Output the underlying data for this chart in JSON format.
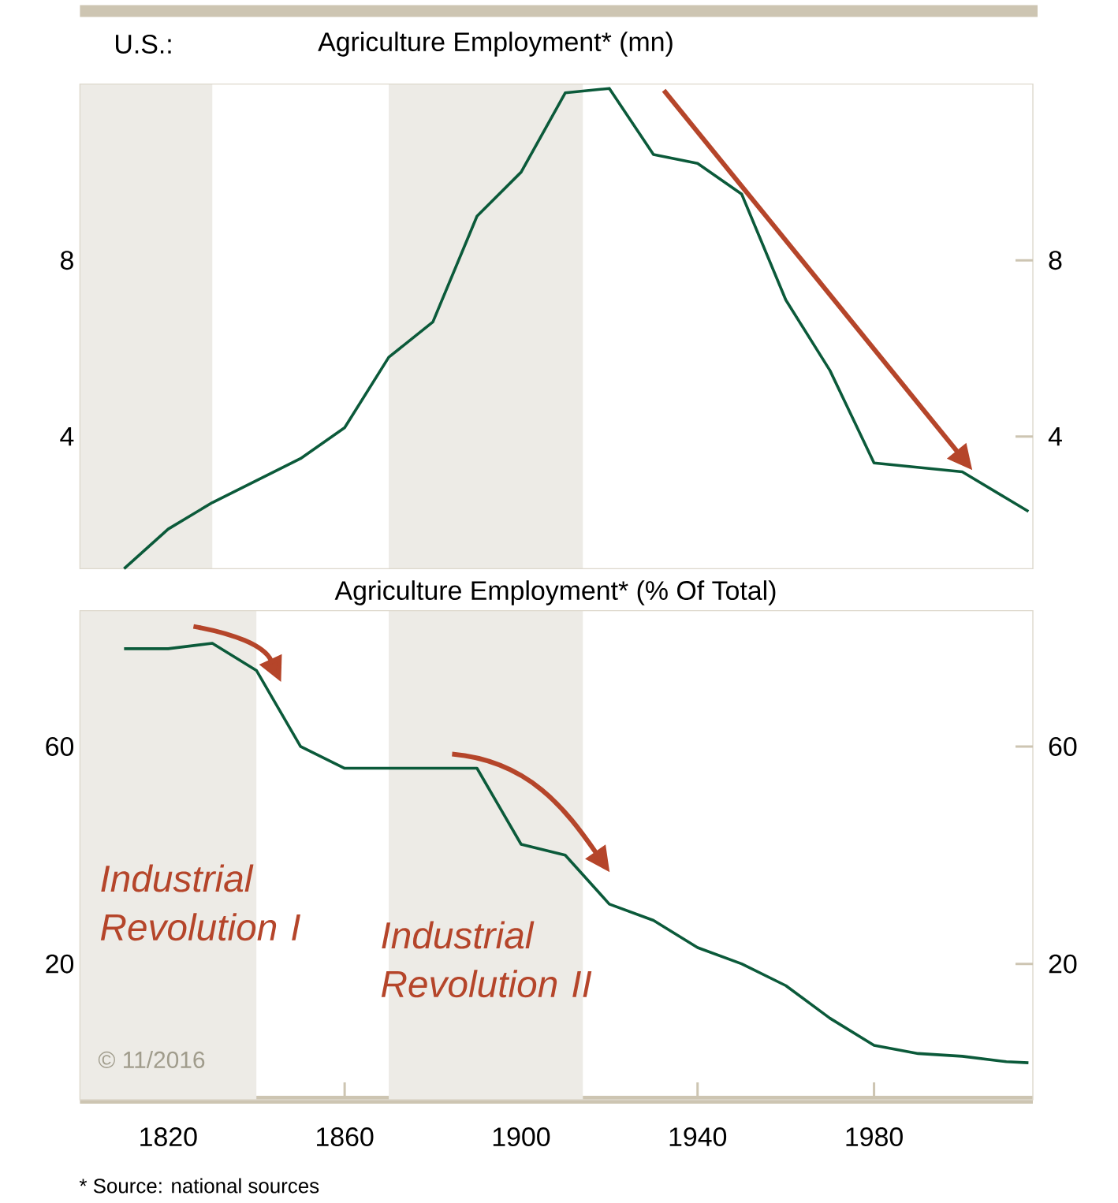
{
  "chart_data": [
    {
      "type": "line",
      "title": "Agriculture Employment* (mn)",
      "annotations": [
        "U.S.:"
      ],
      "x": [
        1810,
        1820,
        1830,
        1850,
        1860,
        1870,
        1880,
        1890,
        1900,
        1910,
        1920,
        1930,
        1940,
        1950,
        1960,
        1970,
        1980,
        2000,
        2010,
        2015
      ],
      "values": [
        1.0,
        1.9,
        2.5,
        3.5,
        4.2,
        5.8,
        6.6,
        9.0,
        10.0,
        11.8,
        11.9,
        10.4,
        10.2,
        9.5,
        7.1,
        5.5,
        3.4,
        3.2,
        2.6,
        2.3
      ],
      "color": "#0b5a3a",
      "xlim": [
        1800,
        2016
      ],
      "ylim": [
        1,
        12
      ],
      "yticks": [
        4,
        8
      ],
      "y2lim": [
        1,
        12
      ],
      "y2ticks": [
        4,
        8
      ],
      "tick_labels": "y",
      "bands": [
        {
          "axis": "x",
          "from": 1800,
          "to": 1830,
          "color": "#edebe6"
        },
        {
          "axis": "x",
          "from": 1870,
          "to": 1914,
          "color": "#edebe6"
        }
      ]
    },
    {
      "type": "line",
      "title": "Agriculture Employment* (% Of Total)",
      "annotations": [
        "Industrial Revolution I",
        "Industrial Revolution II",
        "© 11/2016",
        "* Source: national sources"
      ],
      "x": [
        1810,
        1820,
        1830,
        1840,
        1850,
        1860,
        1890,
        1900,
        1910,
        1920,
        1930,
        1940,
        1950,
        1960,
        1970,
        1980,
        1990,
        2000,
        2010,
        2015
      ],
      "values": [
        78,
        78,
        79,
        74,
        60,
        56,
        56,
        42,
        40,
        31,
        28,
        23,
        20,
        16,
        10,
        5,
        3.5,
        3,
        2,
        1.8
      ],
      "color": "#0b5a3a",
      "xlim": [
        1800,
        2016
      ],
      "xticks": [
        1820,
        1860,
        1900,
        1940,
        1980
      ],
      "ylim": [
        -5,
        85
      ],
      "yticks": [
        20,
        60
      ],
      "y2lim": [
        -5,
        85
      ],
      "y2ticks": [
        20,
        60
      ],
      "bands": [
        {
          "axis": "x",
          "from": 1800,
          "to": 1840,
          "color": "#edebe6"
        },
        {
          "axis": "x",
          "from": 1870,
          "to": 1914,
          "color": "#edebe6"
        }
      ]
    }
  ]
}
